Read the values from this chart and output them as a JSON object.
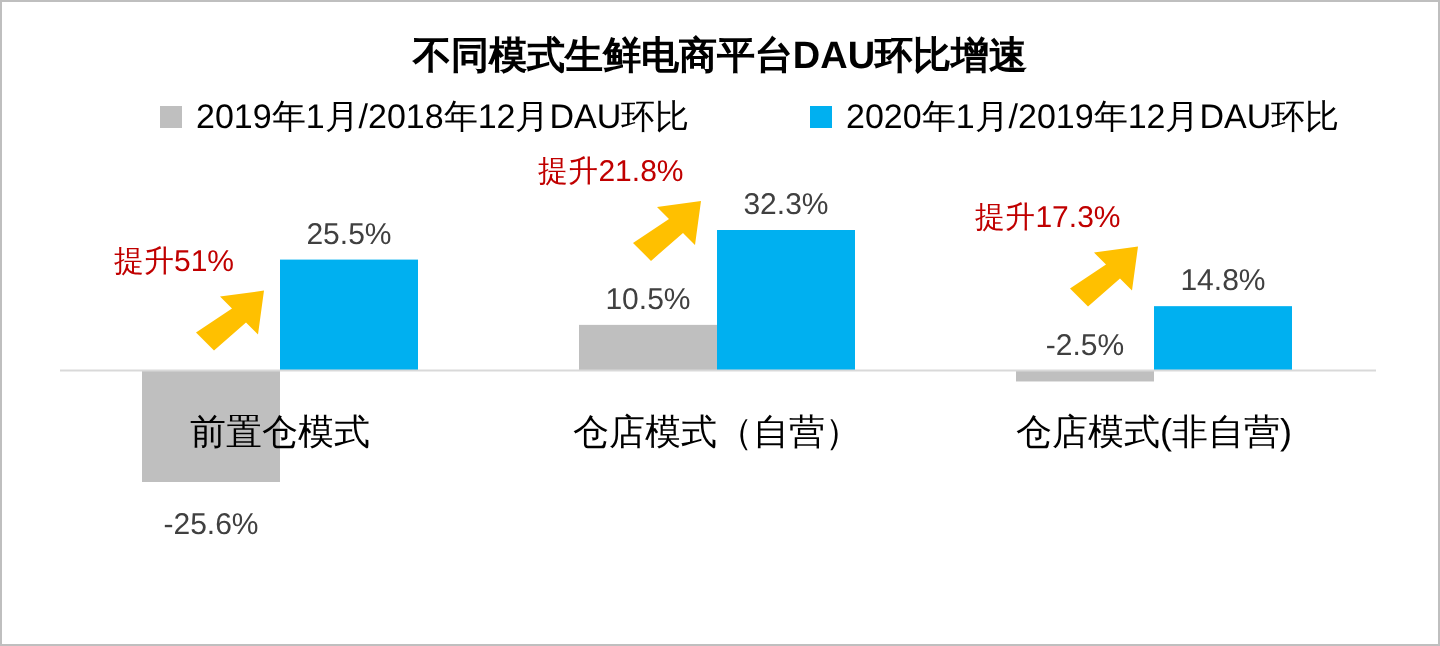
{
  "chart_data": {
    "type": "bar",
    "title": "不同模式生鲜电商平台DAU环比增速",
    "categories": [
      "前置仓模式",
      "仓店模式（自营）",
      "仓店模式(非自营)"
    ],
    "series": [
      {
        "name": "2019年1月/2018年12月DAU环比",
        "color": "#bfbfbf",
        "values": [
          -25.6,
          10.5,
          -2.5
        ],
        "value_labels": [
          "-25.6%",
          "10.5%",
          "-2.5%"
        ]
      },
      {
        "name": "2020年1月/2019年12月DAU环比",
        "color": "#00b0f0",
        "values": [
          25.5,
          32.3,
          14.8
        ],
        "value_labels": [
          "25.5%",
          "32.3%",
          "14.8%"
        ]
      }
    ],
    "legend": "top",
    "annotations": [
      "提升51%",
      "提升21.8%",
      "提升17.3%"
    ]
  }
}
